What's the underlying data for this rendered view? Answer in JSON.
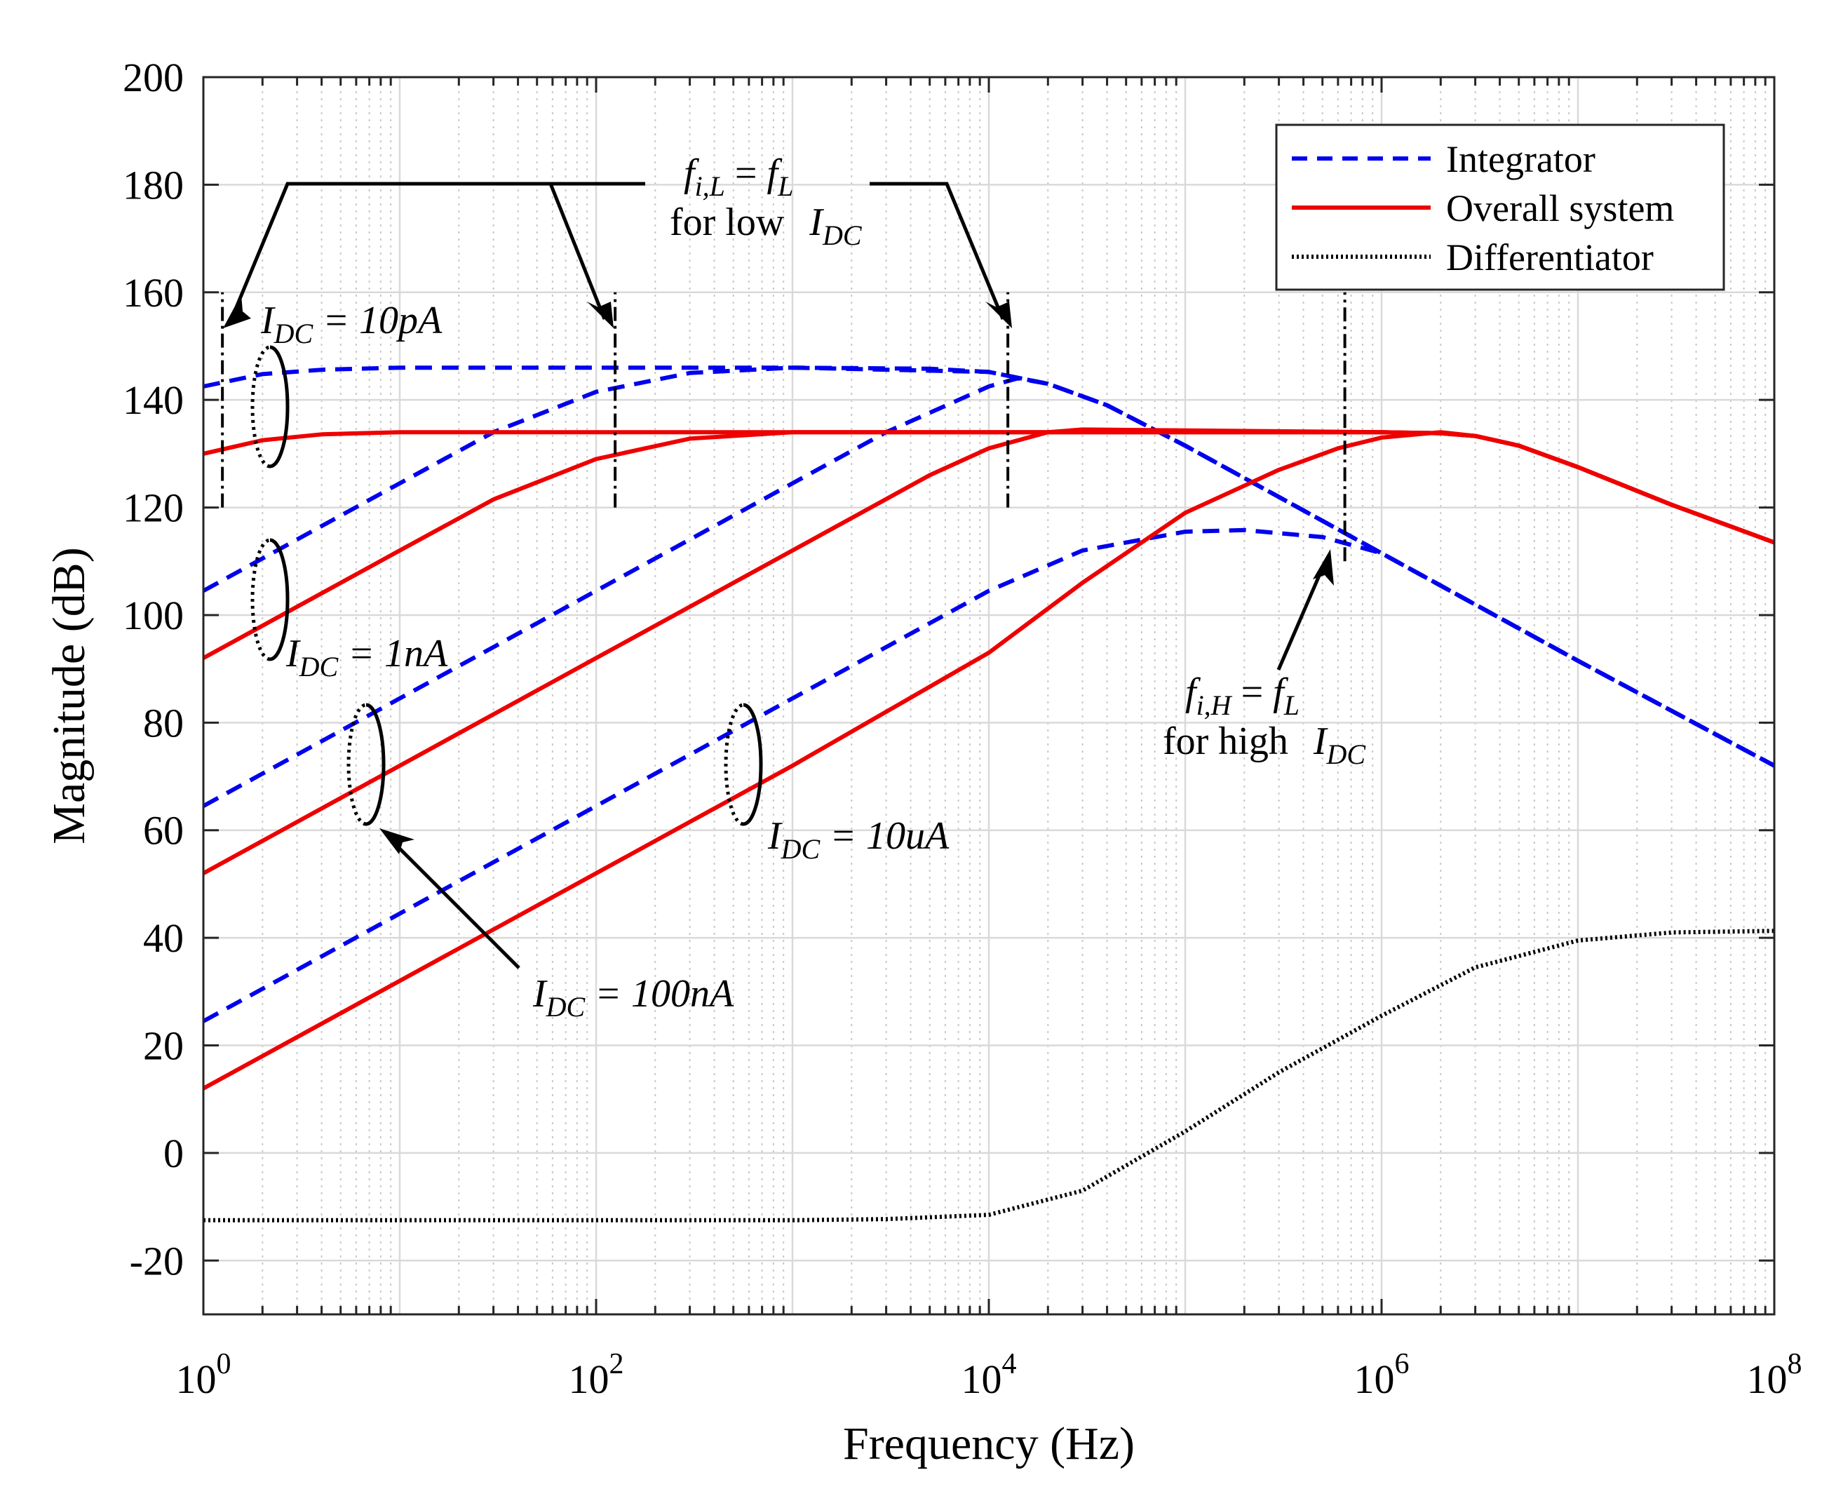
{
  "chart_data": {
    "type": "line",
    "xscale": "log",
    "xlabel": "Frequency (Hz)",
    "ylabel": "Magnitude (dB)",
    "xlim": [
      1,
      100000000
    ],
    "ylim": [
      -30,
      200
    ],
    "grid": true,
    "x_ticks": [
      {
        "value": 1,
        "base": "10",
        "exp": "0"
      },
      {
        "value": 100,
        "base": "10",
        "exp": "2"
      },
      {
        "value": 10000,
        "base": "10",
        "exp": "4"
      },
      {
        "value": 1000000,
        "base": "10",
        "exp": "6"
      },
      {
        "value": 100000000,
        "base": "10",
        "exp": "8"
      }
    ],
    "y_ticks": [
      "-20",
      "0",
      "20",
      "40",
      "60",
      "80",
      "100",
      "120",
      "140",
      "160",
      "180",
      "200"
    ],
    "legend": {
      "position": "top-right",
      "entries": [
        {
          "label": "Integrator",
          "color": "#0000ee",
          "style": "dashed"
        },
        {
          "label": "Overall system",
          "color": "#ee0000",
          "style": "solid"
        },
        {
          "label": "Differentiator",
          "color": "#000000",
          "style": "dotted"
        }
      ]
    },
    "series": [
      {
        "name": "Integrator",
        "condition": "IDC = 10pA",
        "color": "#0000ee",
        "style": "dashed",
        "points": [
          [
            1,
            142.5
          ],
          [
            2,
            144.8
          ],
          [
            4,
            145.6
          ],
          [
            10,
            146
          ],
          [
            100,
            146
          ],
          [
            1000,
            146
          ],
          [
            5000,
            145.8
          ],
          [
            10000,
            145.2
          ],
          [
            20000,
            143
          ],
          [
            40000,
            139
          ],
          [
            100000,
            131.5
          ],
          [
            1000000,
            111.5
          ],
          [
            10000000,
            91.5
          ],
          [
            100000000,
            72
          ]
        ]
      },
      {
        "name": "Integrator",
        "condition": "IDC = 1nA",
        "color": "#0000ee",
        "style": "dashed",
        "points": [
          [
            1,
            104.5
          ],
          [
            10,
            124.5
          ],
          [
            30,
            134
          ],
          [
            100,
            141.5
          ],
          [
            300,
            145
          ],
          [
            1000,
            146
          ],
          [
            10000,
            145.2
          ],
          [
            20000,
            143
          ],
          [
            40000,
            139
          ],
          [
            100000,
            131.5
          ],
          [
            1000000,
            111.5
          ],
          [
            10000000,
            91.5
          ],
          [
            100000000,
            72
          ]
        ]
      },
      {
        "name": "Integrator",
        "condition": "IDC = 100nA",
        "color": "#0000ee",
        "style": "dashed",
        "points": [
          [
            1,
            64.5
          ],
          [
            10,
            84.5
          ],
          [
            100,
            104.5
          ],
          [
            1000,
            124.5
          ],
          [
            3000,
            134
          ],
          [
            10000,
            142.5
          ],
          [
            14000,
            144
          ],
          [
            20000,
            143
          ],
          [
            40000,
            139
          ],
          [
            100000,
            131.5
          ],
          [
            1000000,
            111.5
          ],
          [
            10000000,
            91.5
          ],
          [
            100000000,
            72
          ]
        ]
      },
      {
        "name": "Integrator",
        "condition": "IDC = 10uA",
        "color": "#0000ee",
        "style": "dashed",
        "points": [
          [
            1,
            24.5
          ],
          [
            10,
            44.5
          ],
          [
            100,
            64.5
          ],
          [
            1000,
            84.5
          ],
          [
            10000,
            104.5
          ],
          [
            30000,
            112
          ],
          [
            100000,
            115.5
          ],
          [
            200000,
            115.8
          ],
          [
            500000,
            114.5
          ],
          [
            1000000,
            111.5
          ],
          [
            10000000,
            91.5
          ],
          [
            100000000,
            72
          ]
        ]
      },
      {
        "name": "Overall system",
        "condition": "IDC = 10pA",
        "color": "#ee0000",
        "style": "solid",
        "points": [
          [
            1,
            130
          ],
          [
            2,
            132.5
          ],
          [
            4,
            133.6
          ],
          [
            10,
            134
          ],
          [
            100,
            134
          ],
          [
            1000,
            134
          ],
          [
            1000000,
            134
          ],
          [
            2000000,
            133.8
          ],
          [
            3000000,
            133.3
          ],
          [
            5000000,
            131.5
          ],
          [
            10000000,
            127.5
          ],
          [
            30000000,
            120.5
          ],
          [
            100000000,
            113.5
          ]
        ]
      },
      {
        "name": "Overall system",
        "condition": "IDC = 1nA",
        "color": "#ee0000",
        "style": "solid",
        "points": [
          [
            1,
            92
          ],
          [
            10,
            112
          ],
          [
            30,
            121.5
          ],
          [
            100,
            129
          ],
          [
            300,
            132.8
          ],
          [
            1000,
            134
          ],
          [
            1000000,
            134
          ],
          [
            2000000,
            133.8
          ],
          [
            3000000,
            133.3
          ],
          [
            5000000,
            131.5
          ],
          [
            10000000,
            127.5
          ],
          [
            30000000,
            120.5
          ],
          [
            100000000,
            113.5
          ]
        ]
      },
      {
        "name": "Overall system",
        "condition": "IDC = 100nA",
        "color": "#ee0000",
        "style": "solid",
        "points": [
          [
            1,
            52
          ],
          [
            10,
            72
          ],
          [
            100,
            92
          ],
          [
            1000,
            112
          ],
          [
            5000,
            126
          ],
          [
            10000,
            131
          ],
          [
            20000,
            134
          ],
          [
            30000,
            134.5
          ],
          [
            1000000,
            134
          ],
          [
            2000000,
            133.8
          ],
          [
            3000000,
            133.3
          ],
          [
            5000000,
            131.5
          ],
          [
            10000000,
            127.5
          ],
          [
            30000000,
            120.5
          ],
          [
            100000000,
            113.5
          ]
        ]
      },
      {
        "name": "Overall system",
        "condition": "IDC = 10uA",
        "color": "#ee0000",
        "style": "solid",
        "points": [
          [
            1,
            12
          ],
          [
            10,
            32
          ],
          [
            100,
            52
          ],
          [
            1000,
            72
          ],
          [
            10000,
            93
          ],
          [
            30000,
            106
          ],
          [
            100000,
            119
          ],
          [
            300000,
            127
          ],
          [
            600000,
            131
          ],
          [
            1000000,
            133
          ],
          [
            2000000,
            134
          ],
          [
            3000000,
            133.3
          ],
          [
            5000000,
            131.5
          ],
          [
            10000000,
            127.5
          ],
          [
            30000000,
            120.5
          ],
          [
            100000000,
            113.5
          ]
        ]
      },
      {
        "name": "Differentiator",
        "color": "#000000",
        "style": "dotted",
        "points": [
          [
            1,
            -12.5
          ],
          [
            1000,
            -12.5
          ],
          [
            3000,
            -12.3
          ],
          [
            10000,
            -11.5
          ],
          [
            30000,
            -7
          ],
          [
            100000,
            4
          ],
          [
            300000,
            15
          ],
          [
            1000000,
            25.5
          ],
          [
            3000000,
            34.5
          ],
          [
            10000000,
            39.5
          ],
          [
            30000000,
            41
          ],
          [
            100000000,
            41.3
          ]
        ]
      }
    ],
    "markers": [
      {
        "name": "fL-marker-10pA",
        "x": 1.25,
        "y_from": 120,
        "y_to": 160
      },
      {
        "name": "fL-marker-1nA",
        "x": 125,
        "y_from": 120,
        "y_to": 160
      },
      {
        "name": "fL-marker-100nA",
        "x": 12500,
        "y_from": 120,
        "y_to": 160
      },
      {
        "name": "fH-marker",
        "x": 650000,
        "y_from": 110,
        "y_to": 160
      }
    ],
    "annotations": {
      "fiL_lhs": "f",
      "fiL_sub": "i,L",
      "fiL_eq": " = ",
      "fiL_rhs": "f",
      "fiL_rhs_sub": "L",
      "fiL_line2": "for low",
      "fiL_line2_var": "I",
      "fiL_line2_sub": "DC",
      "fiH_lhs": "f",
      "fiH_sub": "i,H",
      "fiH_eq": " = ",
      "fiH_rhs": "f",
      "fiH_rhs_sub": "L",
      "fiH_line2": "for high",
      "fiH_line2_var": "I",
      "fiH_line2_sub": "DC",
      "idc_var": "I",
      "idc_sub": "DC",
      "idc_10pA": " = 10pA",
      "idc_1nA": " = 1nA",
      "idc_100nA": " = 100nA",
      "idc_10uA": " = 10uA"
    }
  }
}
